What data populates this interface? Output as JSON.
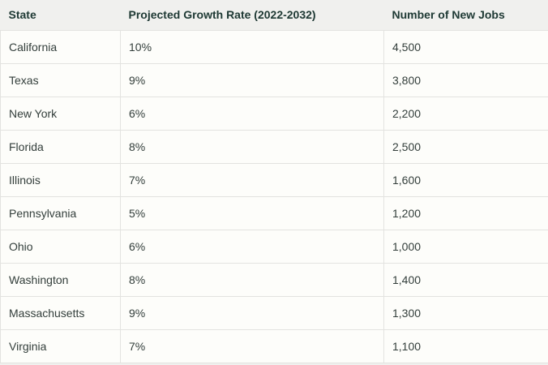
{
  "chart_data": {
    "type": "table",
    "title": "",
    "columns": [
      "State",
      "Projected Growth Rate (2022-2032)",
      "Number of New Jobs"
    ],
    "rows": [
      [
        "California",
        "10%",
        "4,500"
      ],
      [
        "Texas",
        "9%",
        "3,800"
      ],
      [
        "New York",
        "6%",
        "2,200"
      ],
      [
        "Florida",
        "8%",
        "2,500"
      ],
      [
        "Illinois",
        "7%",
        "1,600"
      ],
      [
        "Pennsylvania",
        "5%",
        "1,200"
      ],
      [
        "Ohio",
        "6%",
        "1,000"
      ],
      [
        "Washington",
        "8%",
        "1,400"
      ],
      [
        "Massachusetts",
        "9%",
        "1,300"
      ],
      [
        "Virginia",
        "7%",
        "1,100"
      ]
    ]
  },
  "colors": {
    "page_bg": "#f0f0ee",
    "cell_bg": "#fdfdfa",
    "border": "#e3e3e0",
    "header_text": "#1d3833",
    "cell_text": "#333e3b"
  }
}
